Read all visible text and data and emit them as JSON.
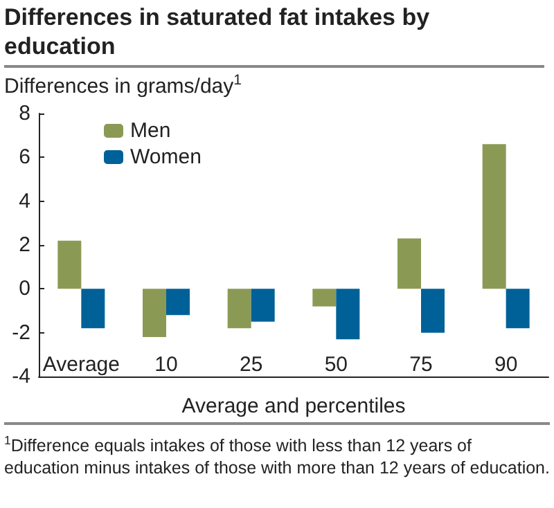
{
  "chart_data": {
    "type": "bar",
    "title": "Differences in saturated fat intakes by education",
    "ylabel": "Differences in grams/day$^{1}$",
    "xlabel": "Average and percentiles",
    "categories": [
      "Average",
      "10",
      "25",
      "50",
      "75",
      "90"
    ],
    "series": [
      {
        "name": "Men",
        "color": "#8a9a55",
        "values": [
          2.2,
          -2.2,
          -1.8,
          -0.8,
          2.3,
          6.6
        ]
      },
      {
        "name": "Women",
        "color": "#006198",
        "values": [
          -1.8,
          -1.2,
          -1.5,
          -2.3,
          -2.0,
          -1.8
        ]
      }
    ],
    "ylim": [
      -4,
      8
    ],
    "yticks": [
      -4,
      -2,
      0,
      2,
      4,
      6,
      8
    ],
    "grid": false,
    "legend": "top left",
    "annotations": [
      "$^{1}$Difference equals intakes of those with less than 12 years of education minus intakes of those with more than 12 years of education."
    ]
  }
}
